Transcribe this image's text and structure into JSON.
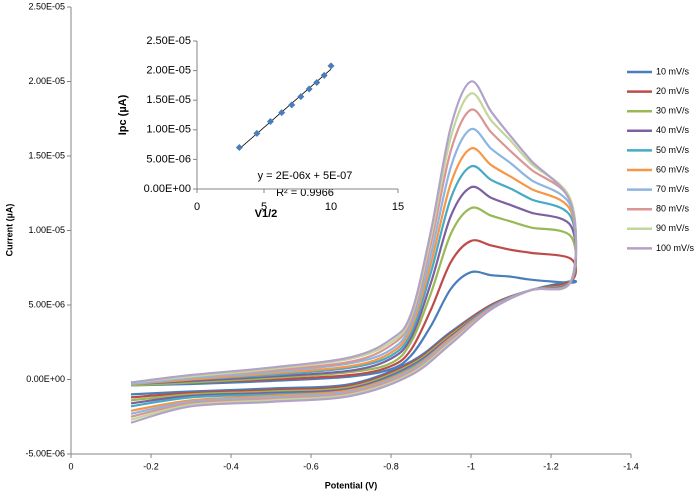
{
  "chart_data": [
    {
      "type": "line",
      "x_label": "Potential (V)",
      "y_label": "Current (µA)",
      "xlim": [
        0,
        -1.4
      ],
      "xticks": [
        0,
        -0.2,
        -0.4,
        -0.6,
        -0.8,
        -1,
        -1.2,
        -1.4
      ],
      "ylim": [
        -5e-06,
        2.5e-05
      ],
      "yticks": [
        {
          "value": -5e-06,
          "label": "-5.00E-06"
        },
        {
          "value": 0,
          "label": "0.00E+00"
        },
        {
          "value": 5e-06,
          "label": "5.00E-06"
        },
        {
          "value": 1e-05,
          "label": "1.00E-05"
        },
        {
          "value": 1.5e-05,
          "label": "1.50E-05"
        },
        {
          "value": 2e-05,
          "label": "2.00E-05"
        },
        {
          "value": 2.5e-05,
          "label": "2.50E-05"
        }
      ],
      "grid": false,
      "legend": "right",
      "x": [
        -0.15,
        -0.3,
        -0.5,
        -0.7,
        -0.8,
        -0.85,
        -0.9,
        -0.95,
        -1.0,
        -1.05,
        -1.1,
        -1.15,
        -1.25,
        -1.25,
        -1.15,
        -1.05,
        -0.95,
        -0.85,
        -0.7,
        -0.5,
        -0.3,
        -0.15
      ],
      "series": [
        {
          "name": "10 mV/s",
          "color": "#4a7ebb",
          "values": [
            -4e-07,
            -3e-07,
            -1e-07,
            2e-07,
            7e-07,
            1.6e-06,
            3.6e-06,
            6.1e-06,
            7.2e-06,
            7e-06,
            6.9e-06,
            6.7e-06,
            6.5e-06,
            6.6e-06,
            6e-06,
            5e-06,
            3.2e-06,
            1.2e-06,
            -3e-07,
            -6e-07,
            -8e-07,
            -1e-06
          ]
        },
        {
          "name": "20 mV/s",
          "color": "#be4b48",
          "values": [
            -4e-07,
            -2e-07,
            0.0,
            3e-07,
            9e-07,
            2e-06,
            4.7e-06,
            7.9e-06,
            9.3e-06,
            9e-06,
            8.7e-06,
            8.5e-06,
            8.1e-06,
            6.6e-06,
            6e-06,
            5e-06,
            3.1e-06,
            1.1e-06,
            -4e-07,
            -7e-07,
            -9e-07,
            -1.2e-06
          ]
        },
        {
          "name": "30 mV/s",
          "color": "#98b954",
          "values": [
            -4e-07,
            -2e-07,
            1e-07,
            5e-07,
            1.1e-06,
            2.5e-06,
            5.8e-06,
            9.8e-06,
            1.15e-05,
            1.1e-05,
            1.06e-05,
            1.02e-05,
            9.6e-06,
            6.6e-06,
            6e-06,
            4.9e-06,
            3e-06,
            1e-06,
            -5e-07,
            -8e-07,
            -1e-06,
            -1.4e-06
          ]
        },
        {
          "name": "40 mV/s",
          "color": "#7d60a0",
          "values": [
            -3e-07,
            -1e-07,
            2e-07,
            6e-07,
            1.4e-06,
            2.8e-06,
            6.5e-06,
            1.1e-05,
            1.29e-05,
            1.22e-05,
            1.17e-05,
            1.12e-05,
            1.03e-05,
            6.6e-06,
            6e-06,
            4.9e-06,
            2.9e-06,
            9e-07,
            -6e-07,
            -9e-07,
            -1.1e-06,
            -1.6e-06
          ]
        },
        {
          "name": "50 mV/s",
          "color": "#46aac5",
          "values": [
            -3e-07,
            0.0,
            3e-07,
            8e-07,
            1.6e-06,
            3.1e-06,
            7.2e-06,
            1.22e-05,
            1.43e-05,
            1.34e-05,
            1.28e-05,
            1.21e-05,
            1.09e-05,
            6.6e-06,
            6e-06,
            4.9e-06,
            2.8e-06,
            8e-07,
            -7e-07,
            -1e-06,
            -1.2e-06,
            -1.8e-06
          ]
        },
        {
          "name": "60 mV/s",
          "color": "#f79646",
          "values": [
            -3e-07,
            0.0,
            4e-07,
            9e-07,
            1.8e-06,
            3.4e-06,
            7.8e-06,
            1.32e-05,
            1.55e-05,
            1.44e-05,
            1.36e-05,
            1.28e-05,
            1.13e-05,
            6.6e-06,
            6e-06,
            4.8e-06,
            2.8e-06,
            7e-07,
            -7e-07,
            -1.1e-06,
            -1.4e-06,
            -2.1e-06
          ]
        },
        {
          "name": "70 mV/s",
          "color": "#8db4e2",
          "values": [
            -3e-07,
            1e-07,
            5e-07,
            1.1e-06,
            2e-06,
            3.7e-06,
            8.4e-06,
            1.43e-05,
            1.68e-05,
            1.55e-05,
            1.45e-05,
            1.34e-05,
            1.16e-05,
            6.6e-06,
            6e-06,
            4.8e-06,
            2.7e-06,
            6e-07,
            -8e-07,
            -1.2e-06,
            -1.5e-06,
            -2.3e-06
          ]
        },
        {
          "name": "80 mV/s",
          "color": "#d99694",
          "values": [
            -2e-07,
            2e-07,
            6e-07,
            1.2e-06,
            2.3e-06,
            4e-06,
            9.1e-06,
            1.54e-05,
            1.81e-05,
            1.66e-05,
            1.53e-05,
            1.41e-05,
            1.19e-05,
            6.6e-06,
            6e-06,
            4.8e-06,
            2.6e-06,
            5e-07,
            -9e-07,
            -1.3e-06,
            -1.6e-06,
            -2.5e-06
          ]
        },
        {
          "name": "90 mV/s",
          "color": "#c3d69b",
          "values": [
            -2e-07,
            2e-07,
            7e-07,
            1.4e-06,
            2.5e-06,
            4.2e-06,
            9.6e-06,
            1.63e-05,
            1.92e-05,
            1.74e-05,
            1.6e-05,
            1.45e-05,
            1.2e-05,
            6.6e-06,
            6e-06,
            4.7e-06,
            2.5e-06,
            4e-07,
            -1e-06,
            -1.4e-06,
            -1.7e-06,
            -2.7e-06
          ]
        },
        {
          "name": "100 mV/s",
          "color": "#b3a2c7",
          "values": [
            -2e-07,
            3e-07,
            8e-07,
            1.5e-06,
            2.7e-06,
            4.4e-06,
            1e-05,
            1.7e-05,
            2e-05,
            1.8e-05,
            1.63e-05,
            1.47e-05,
            1.18e-05,
            6.6e-06,
            6e-06,
            4.7e-06,
            2.4e-06,
            3e-07,
            -1.1e-06,
            -1.5e-06,
            -1.8e-06,
            -2.9e-06
          ]
        }
      ]
    },
    {
      "type": "scatter",
      "x_label": "V1/2",
      "y_label": "Ipc (µA)",
      "xlim": [
        0,
        15
      ],
      "xticks": [
        0,
        5,
        10,
        15
      ],
      "ylim": [
        0,
        2.5e-05
      ],
      "yticks": [
        {
          "value": 0,
          "label": "0.00E+00"
        },
        {
          "value": 5e-06,
          "label": "5.00E-06"
        },
        {
          "value": 1e-05,
          "label": "1.00E-05"
        },
        {
          "value": 1.5e-05,
          "label": "1.50E-05"
        },
        {
          "value": 2e-05,
          "label": "2.00E-05"
        },
        {
          "value": 2.5e-05,
          "label": "2.50E-05"
        }
      ],
      "trendline": true,
      "annotations": [
        "y = 2E-06x + 5E-07",
        "R² = 0.9966"
      ],
      "x": [
        3.16,
        4.47,
        5.48,
        6.32,
        7.07,
        7.75,
        8.37,
        8.94,
        9.49,
        10
      ],
      "series": [
        {
          "color": "#4a7ebb",
          "values": [
            7e-06,
            9.4e-06,
            1.14e-05,
            1.29e-05,
            1.42e-05,
            1.56e-05,
            1.69e-05,
            1.8e-05,
            1.92e-05,
            2.08e-05
          ]
        }
      ]
    }
  ]
}
